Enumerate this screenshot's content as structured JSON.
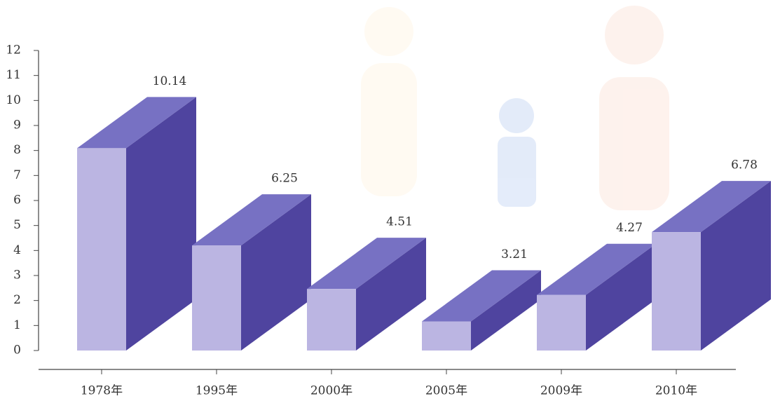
{
  "chart_data": {
    "type": "bar3d",
    "categories": [
      "1978年",
      "1995年",
      "2000年",
      "2005年",
      "2009年",
      "2010年"
    ],
    "values": [
      10.14,
      6.25,
      4.51,
      3.21,
      4.27,
      6.78
    ],
    "ylim": [
      0,
      12
    ],
    "yticks": [
      0,
      1,
      2,
      3,
      4,
      5,
      6,
      7,
      8,
      9,
      10,
      11,
      12
    ],
    "colors": {
      "front": "#bbb5e2",
      "top": "#7771c3",
      "side": "#4f449f"
    }
  }
}
